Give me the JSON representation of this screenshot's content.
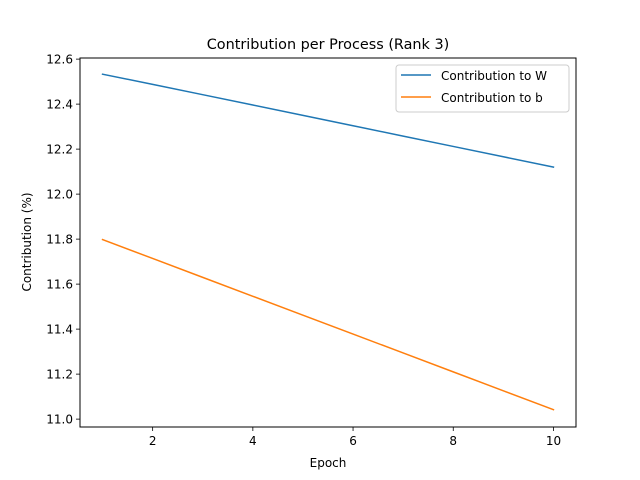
{
  "chart_data": {
    "type": "line",
    "title": "Contribution per Process (Rank 3)",
    "xlabel": "Epoch",
    "ylabel": "Contribution (%)",
    "xlim": [
      0.55,
      10.45
    ],
    "ylim": [
      10.965,
      12.605
    ],
    "xticks": [
      2,
      4,
      6,
      8,
      10
    ],
    "yticks": [
      11.0,
      11.2,
      11.4,
      11.6,
      11.8,
      12.0,
      12.2,
      12.4,
      12.6
    ],
    "grid": false,
    "legend_position": "top-right",
    "x": [
      1,
      2,
      3,
      4,
      5,
      6,
      7,
      8,
      9,
      10
    ],
    "series": [
      {
        "name": "Contribution to W",
        "color": "#1f77b4",
        "values": [
          12.533,
          12.488,
          12.442,
          12.396,
          12.35,
          12.304,
          12.258,
          12.212,
          12.166,
          12.12
        ]
      },
      {
        "name": "Contribution to b",
        "color": "#ff7f0e",
        "values": [
          11.798,
          11.714,
          11.63,
          11.546,
          11.462,
          11.378,
          11.294,
          11.21,
          11.126,
          11.042
        ]
      }
    ]
  }
}
